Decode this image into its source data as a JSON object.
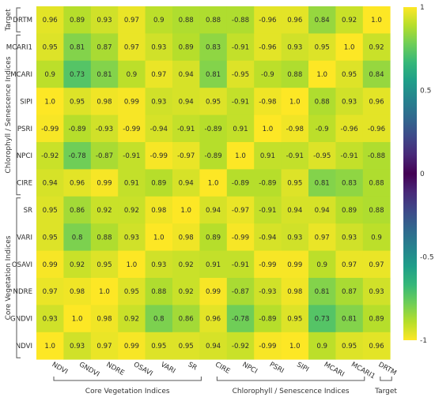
{
  "chart_data": {
    "type": "heatmap",
    "title": "",
    "xlabel": "",
    "ylabel": "",
    "x_labels": [
      "NDVI",
      "GNDVI",
      "NDRE",
      "OSAVI",
      "VARI",
      "SR",
      "CIRE",
      "NPCI",
      "PSRI",
      "SIPI",
      "MCARI",
      "MCARI1",
      "DRTM"
    ],
    "y_labels": [
      "DRTM",
      "MCARI1",
      "MCARI",
      "SIPI",
      "PSRI",
      "NPCI",
      "CIRE",
      "SR",
      "VARI",
      "OSAVI",
      "NDRE",
      "GNDVI",
      "NDVI"
    ],
    "values": [
      [
        0.96,
        0.89,
        0.93,
        0.97,
        0.9,
        0.88,
        0.88,
        -0.88,
        -0.96,
        0.96,
        0.84,
        0.92,
        1.0
      ],
      [
        0.95,
        0.81,
        0.87,
        0.97,
        0.93,
        0.89,
        0.83,
        -0.91,
        -0.96,
        0.93,
        0.95,
        1.0,
        0.92
      ],
      [
        0.9,
        0.73,
        0.81,
        0.9,
        0.97,
        0.94,
        0.81,
        -0.95,
        -0.9,
        0.88,
        1.0,
        0.95,
        0.84
      ],
      [
        1.0,
        0.95,
        0.98,
        0.99,
        0.93,
        0.94,
        0.95,
        -0.91,
        -0.98,
        1.0,
        0.88,
        0.93,
        0.96
      ],
      [
        -0.99,
        -0.89,
        -0.93,
        -0.99,
        -0.94,
        -0.91,
        -0.89,
        0.91,
        1.0,
        -0.98,
        -0.9,
        -0.96,
        -0.96
      ],
      [
        -0.92,
        -0.78,
        -0.87,
        -0.91,
        -0.99,
        -0.97,
        -0.89,
        1.0,
        0.91,
        -0.91,
        -0.95,
        -0.91,
        -0.88
      ],
      [
        0.94,
        0.96,
        0.99,
        0.91,
        0.89,
        0.94,
        1.0,
        -0.89,
        -0.89,
        0.95,
        0.81,
        0.83,
        0.88
      ],
      [
        0.95,
        0.86,
        0.92,
        0.92,
        0.98,
        1.0,
        0.94,
        -0.97,
        -0.91,
        0.94,
        0.94,
        0.89,
        0.88
      ],
      [
        0.95,
        0.8,
        0.88,
        0.93,
        1.0,
        0.98,
        0.89,
        -0.99,
        -0.94,
        0.93,
        0.97,
        0.93,
        0.9
      ],
      [
        0.99,
        0.92,
        0.95,
        1.0,
        0.93,
        0.92,
        0.91,
        -0.91,
        -0.99,
        0.99,
        0.9,
        0.97,
        0.97
      ],
      [
        0.97,
        0.98,
        1.0,
        0.95,
        0.88,
        0.92,
        0.99,
        -0.87,
        -0.93,
        0.98,
        0.81,
        0.87,
        0.93
      ],
      [
        0.93,
        1.0,
        0.98,
        0.92,
        0.8,
        0.86,
        0.96,
        -0.78,
        -0.89,
        0.95,
        0.73,
        0.81,
        0.89
      ],
      [
        1.0,
        0.93,
        0.97,
        0.99,
        0.95,
        0.95,
        0.94,
        -0.92,
        -0.99,
        1.0,
        0.9,
        0.95,
        0.96
      ]
    ],
    "value_labels": [
      [
        "0.96",
        "0.89",
        "0.93",
        "0.97",
        "0.9",
        "0.88",
        "0.88",
        "-0.88",
        "-0.96",
        "0.96",
        "0.84",
        "0.92",
        "1.0"
      ],
      [
        "0.95",
        "0.81",
        "0.87",
        "0.97",
        "0.93",
        "0.89",
        "0.83",
        "-0.91",
        "-0.96",
        "0.93",
        "0.95",
        "1.0",
        "0.92"
      ],
      [
        "0.9",
        "0.73",
        "0.81",
        "0.9",
        "0.97",
        "0.94",
        "0.81",
        "-0.95",
        "-0.9",
        "0.88",
        "1.0",
        "0.95",
        "0.84"
      ],
      [
        "1.0",
        "0.95",
        "0.98",
        "0.99",
        "0.93",
        "0.94",
        "0.95",
        "-0.91",
        "-0.98",
        "1.0",
        "0.88",
        "0.93",
        "0.96"
      ],
      [
        "-0.99",
        "-0.89",
        "-0.93",
        "-0.99",
        "-0.94",
        "-0.91",
        "-0.89",
        "0.91",
        "1.0",
        "-0.98",
        "-0.9",
        "-0.96",
        "-0.96"
      ],
      [
        "-0.92",
        "-0.78",
        "-0.87",
        "-0.91",
        "-0.99",
        "-0.97",
        "-0.89",
        "1.0",
        "0.91",
        "-0.91",
        "-0.95",
        "-0.91",
        "-0.88"
      ],
      [
        "0.94",
        "0.96",
        "0.99",
        "0.91",
        "0.89",
        "0.94",
        "1.0",
        "-0.89",
        "-0.89",
        "0.95",
        "0.81",
        "0.83",
        "0.88"
      ],
      [
        "0.95",
        "0.86",
        "0.92",
        "0.92",
        "0.98",
        "1.0",
        "0.94",
        "-0.97",
        "-0.91",
        "0.94",
        "0.94",
        "0.89",
        "0.88"
      ],
      [
        "0.95",
        "0.8",
        "0.88",
        "0.93",
        "1.0",
        "0.98",
        "0.89",
        "-0.99",
        "-0.94",
        "0.93",
        "0.97",
        "0.93",
        "0.9"
      ],
      [
        "0.99",
        "0.92",
        "0.95",
        "1.0",
        "0.93",
        "0.92",
        "0.91",
        "-0.91",
        "-0.99",
        "0.99",
        "0.9",
        "0.97",
        "0.97"
      ],
      [
        "0.97",
        "0.98",
        "1.0",
        "0.95",
        "0.88",
        "0.92",
        "0.99",
        "-0.87",
        "-0.93",
        "0.98",
        "0.81",
        "0.87",
        "0.93"
      ],
      [
        "0.93",
        "1.0",
        "0.98",
        "0.92",
        "0.8",
        "0.86",
        "0.96",
        "-0.78",
        "-0.89",
        "0.95",
        "0.73",
        "0.81",
        "0.89"
      ],
      [
        "1.0",
        "0.93",
        "0.97",
        "0.99",
        "0.95",
        "0.95",
        "0.94",
        "-0.92",
        "-0.99",
        "1.0",
        "0.9",
        "0.95",
        "0.96"
      ]
    ],
    "row_groups": [
      {
        "label": "Target",
        "from": 0,
        "to": 0
      },
      {
        "label": "Chlorophyll / Senescence Indices",
        "from": 1,
        "to": 6
      },
      {
        "label": "Core Vegetation Indices",
        "from": 7,
        "to": 12
      }
    ],
    "col_groups": [
      {
        "label": "Core Vegetation Indices",
        "from": 0,
        "to": 5
      },
      {
        "label": "Chlorophyll / Senescence Indices",
        "from": 6,
        "to": 11
      },
      {
        "label": "Target",
        "from": 12,
        "to": 12
      }
    ],
    "colorbar": {
      "min": -1,
      "max": 1,
      "ticks": [
        1,
        0.5,
        0,
        -0.5,
        -1
      ],
      "tick_labels": [
        "1",
        "0.5",
        "0",
        "-0.5",
        "-1"
      ],
      "colorscale": [
        "#fde725",
        "#b5de2b",
        "#6ece58",
        "#35b779",
        "#1f9e89",
        "#26828e",
        "#31688e",
        "#3e4989",
        "#482878",
        "#440154",
        "#482878",
        "#3e4989",
        "#31688e",
        "#26828e",
        "#1f9e89",
        "#35b779",
        "#6ece58",
        "#b5de2b",
        "#fde725"
      ]
    }
  }
}
